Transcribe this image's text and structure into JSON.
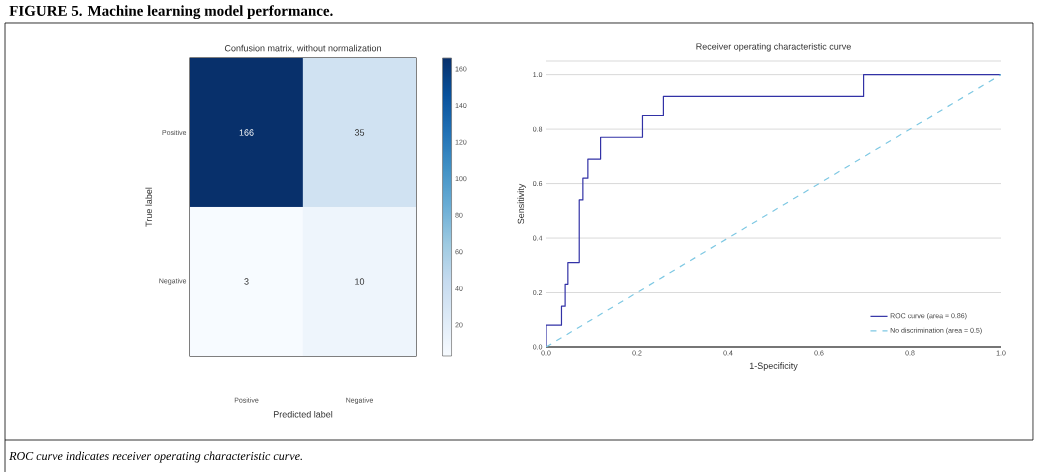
{
  "chart_data": [
    {
      "type": "heatmap",
      "title": "Confusion matrix, without normalization",
      "xlabel": "Predicted label",
      "ylabel": "True label",
      "categories": [
        "Positive",
        "Negative"
      ],
      "y_categories": [
        "Positive",
        "Negative"
      ],
      "cells": [
        [
          166,
          35
        ],
        [
          3,
          10
        ]
      ],
      "clim": [
        3,
        166
      ],
      "cticks": [
        20,
        40,
        60,
        80,
        100,
        120,
        140,
        160
      ],
      "data_labels": true,
      "annotations": [
        "FIGURE 5. Machine learning model performance.",
        "ROC curve indicates receiver operating characteristic curve."
      ]
    },
    {
      "type": "line",
      "title": "Receiver operating characteristic curve",
      "xlabel": "1-Specificity",
      "ylabel": "Sensitivity",
      "xlim": [
        0,
        1
      ],
      "ylim": [
        0,
        1.05
      ],
      "xticks": [
        {
          "value": 0,
          "label": "0.0"
        },
        0.2,
        0.4,
        0.6,
        0.8,
        {
          "value": 1,
          "label": "1.0"
        }
      ],
      "yticks": [
        {
          "value": 0,
          "label": "0.0"
        },
        0.2,
        0.4,
        0.6,
        0.8,
        {
          "value": 1,
          "label": "1.0"
        },
        {
          "value": 1.05,
          "label": null
        }
      ],
      "grid": "y",
      "legend": "bottom right",
      "series": [
        {
          "name": "ROC curve (area = 0.86)",
          "color": "#3232a6",
          "line_style": "solid",
          "x": [
            0,
            0,
            0.034,
            0.034,
            0.042,
            0.042,
            0.048,
            0.048,
            0.073,
            0.073,
            0.081,
            0.081,
            0.092,
            0.092,
            0.12,
            0.12,
            0.212,
            0.212,
            0.258,
            0.258,
            0.698,
            0.698,
            1.0
          ],
          "values": [
            0,
            0.08,
            0.08,
            0.15,
            0.15,
            0.23,
            0.23,
            0.31,
            0.31,
            0.54,
            0.54,
            0.62,
            0.62,
            0.69,
            0.69,
            0.77,
            0.77,
            0.85,
            0.85,
            0.92,
            0.92,
            1.0,
            1.0
          ]
        },
        {
          "name": "No discrimination (area = 0.5)",
          "color": "#7ec8e3",
          "line_style": "dashed",
          "x": [
            0,
            1
          ],
          "values": [
            0,
            1
          ]
        }
      ]
    }
  ]
}
